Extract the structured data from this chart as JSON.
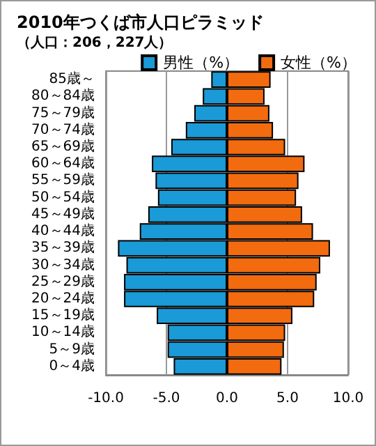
{
  "chart_data": {
    "type": "bar",
    "orientation": "horizontal",
    "title": "2010年つくば市人口ピラミッド",
    "subtitle": "（人口：206，227人）",
    "categories": [
      "85歳～",
      "80～84歳",
      "75～79歳",
      "70～74歳",
      "65～69歳",
      "60～64歳",
      "55～59歳",
      "50～54歳",
      "45～49歳",
      "40～44歳",
      "35～39歳",
      "30～34歳",
      "25～29歳",
      "20～24歳",
      "15～19歳",
      "10～14歳",
      "5～9歳",
      "0～4歳"
    ],
    "series": [
      {
        "name": "男性（%）",
        "color": "#1a9ad6",
        "values": [
          -1.3,
          -2.0,
          -2.7,
          -3.4,
          -4.6,
          -6.2,
          -5.9,
          -5.7,
          -6.5,
          -7.2,
          -9.0,
          -8.3,
          -8.5,
          -8.5,
          -5.8,
          -4.9,
          -4.9,
          -4.4
        ]
      },
      {
        "name": "女性（%）",
        "color": "#f26b0f",
        "values": [
          3.6,
          3.1,
          3.5,
          3.8,
          4.8,
          6.4,
          5.9,
          5.7,
          6.2,
          7.1,
          8.5,
          7.7,
          7.4,
          7.2,
          5.4,
          4.8,
          4.7,
          4.5
        ]
      }
    ],
    "xlim": [
      -10,
      10
    ],
    "xticks": [
      {
        "value": -10,
        "label": "-10.0"
      },
      {
        "value": -5,
        "label": "-5.0"
      },
      {
        "value": 0,
        "label": "0.0"
      },
      {
        "value": 5,
        "label": "5.0"
      },
      {
        "value": 10,
        "label": "10.0"
      }
    ],
    "grid": "x",
    "legend": "top right",
    "stacked": true
  }
}
